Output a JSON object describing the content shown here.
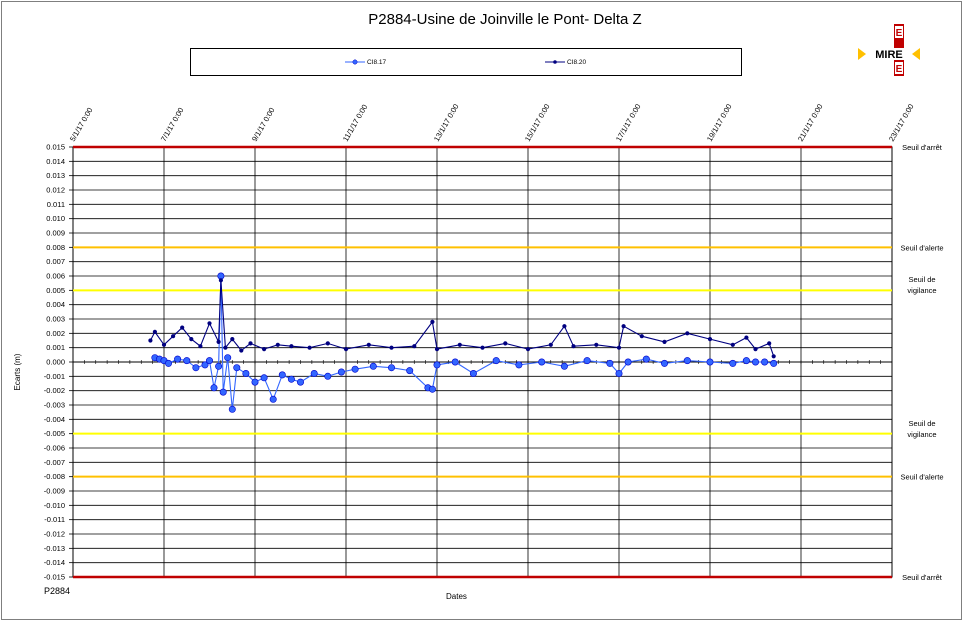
{
  "colors": {
    "threshold_stop": "#c00000",
    "threshold_alert": "#ffc000",
    "threshold_vigilance": "#ffff00",
    "series_ci8_17": "#3366ff",
    "series_ci8_20": "#000080"
  },
  "logo": {
    "text": "MIRE",
    "letters": [
      "E",
      "B",
      "E"
    ]
  },
  "footer": {
    "doc_ref": "P2884"
  },
  "chart_data": {
    "type": "line",
    "title": "P2884-Usine de  Joinville le Pont- Delta Z",
    "xlabel": "Dates",
    "ylabel": "Ecarts (m)",
    "ylim": [
      -0.015,
      0.015
    ],
    "ystep": 0.001,
    "grid": true,
    "legend_position": "top",
    "x_ticks": [
      "5/1/17 0:00",
      "7/1/17 0:00",
      "9/1/17 0:00",
      "11/1/17 0:00",
      "13/1/17 0:00",
      "15/1/17 0:00",
      "17/1/17 0:00",
      "19/1/17 0:00",
      "21/1/17 0:00",
      "23/1/17 0:00"
    ],
    "x_tick_days": [
      5,
      7,
      9,
      11,
      13,
      15,
      17,
      19,
      21,
      23
    ],
    "y_tick_labels": [
      "0.015",
      "0.014",
      "0.013",
      "0.012",
      "0.011",
      "0.010",
      "0.009",
      "0.008",
      "0.007",
      "0.006",
      "0.005",
      "0.004",
      "0.003",
      "0.002",
      "0.001",
      "0.000",
      "-0.001",
      "-0.002",
      "-0.003",
      "-0.004",
      "-0.005",
      "-0.006",
      "-0.007",
      "-0.008",
      "-0.009",
      "-0.010",
      "-0.011",
      "-0.012",
      "-0.013",
      "-0.014",
      "-0.015"
    ],
    "thresholds": [
      {
        "value": 0.015,
        "label": [
          "Seuil d'arrêt"
        ],
        "level": "stop"
      },
      {
        "value": 0.008,
        "label": [
          "Seuil d'alerte"
        ],
        "level": "alert"
      },
      {
        "value": 0.005,
        "label": [
          "Seuil de",
          "vigilance"
        ],
        "level": "vigilance"
      },
      {
        "value": -0.005,
        "label": [
          "Seuil de",
          "vigilance"
        ],
        "level": "vigilance"
      },
      {
        "value": -0.008,
        "label": [
          "Seuil d'alerte"
        ],
        "level": "alert"
      },
      {
        "value": -0.015,
        "label": [
          "Seuil d'arrêt"
        ],
        "level": "stop"
      }
    ],
    "series": [
      {
        "name": "CI8.17",
        "x": [
          6.8,
          6.9,
          7.0,
          7.1,
          7.3,
          7.5,
          7.7,
          7.9,
          8.0,
          8.1,
          8.2,
          8.25,
          8.3,
          8.4,
          8.5,
          8.6,
          8.8,
          9.0,
          9.2,
          9.4,
          9.6,
          9.8,
          10.0,
          10.3,
          10.6,
          10.9,
          11.2,
          11.6,
          12.0,
          12.4,
          12.8,
          12.9,
          13.0,
          13.4,
          13.8,
          14.3,
          14.8,
          15.3,
          15.8,
          16.3,
          16.8,
          17.0,
          17.2,
          17.6,
          18.0,
          18.5,
          19.0,
          19.5,
          19.8,
          20.0,
          20.2,
          20.4
        ],
        "y": [
          0.0003,
          0.0002,
          0.0001,
          -0.0001,
          0.0002,
          0.0001,
          -0.0004,
          -0.0002,
          0.0001,
          -0.0018,
          -0.0003,
          0.006,
          -0.0021,
          0.0003,
          -0.0033,
          -0.0004,
          -0.0008,
          -0.0014,
          -0.0011,
          -0.0026,
          -0.0009,
          -0.0012,
          -0.0014,
          -0.0008,
          -0.001,
          -0.0007,
          -0.0005,
          -0.0003,
          -0.0004,
          -0.0006,
          -0.0018,
          -0.0019,
          -0.0002,
          0.0,
          -0.0008,
          0.0001,
          -0.0002,
          0.0,
          -0.0003,
          0.0001,
          -0.0001,
          -0.0008,
          0.0,
          0.0002,
          -0.0001,
          0.0001,
          0.0,
          -0.0001,
          0.0001,
          0.0,
          0.0,
          -0.0001
        ]
      },
      {
        "name": "CI8.20",
        "x": [
          6.7,
          6.8,
          7.0,
          7.2,
          7.4,
          7.6,
          7.8,
          8.0,
          8.2,
          8.25,
          8.35,
          8.5,
          8.7,
          8.9,
          9.2,
          9.5,
          9.8,
          10.2,
          10.6,
          11.0,
          11.5,
          12.0,
          12.5,
          12.9,
          13.0,
          13.5,
          14.0,
          14.5,
          15.0,
          15.5,
          15.8,
          16.0,
          16.5,
          17.0,
          17.1,
          17.5,
          18.0,
          18.5,
          19.0,
          19.5,
          19.8,
          20.0,
          20.3,
          20.4
        ],
        "y": [
          0.0015,
          0.0021,
          0.0012,
          0.0018,
          0.0024,
          0.0016,
          0.0011,
          0.0027,
          0.0014,
          0.0057,
          0.001,
          0.0016,
          0.0008,
          0.0013,
          0.0009,
          0.0012,
          0.0011,
          0.001,
          0.0013,
          0.0009,
          0.0012,
          0.001,
          0.0011,
          0.0028,
          0.0009,
          0.0012,
          0.001,
          0.0013,
          0.0009,
          0.0012,
          0.0025,
          0.0011,
          0.0012,
          0.001,
          0.0025,
          0.0018,
          0.0014,
          0.002,
          0.0016,
          0.0012,
          0.0017,
          0.0009,
          0.0013,
          0.0004
        ]
      }
    ]
  }
}
